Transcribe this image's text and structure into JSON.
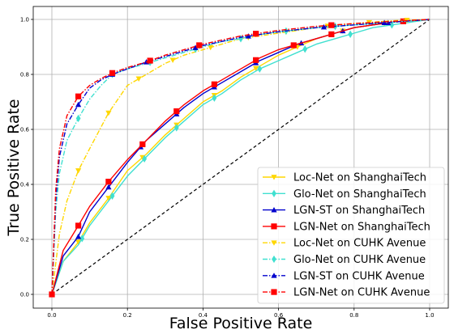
{
  "chart_data": {
    "type": "line",
    "xlabel": "False Positive Rate",
    "ylabel": "True Positive Rate",
    "xlim": [
      -0.05,
      1.05
    ],
    "ylim": [
      -0.02,
      1.02
    ],
    "xticks": [
      "0.0",
      "0.2",
      "0.4",
      "0.6",
      "0.8",
      "1.0"
    ],
    "yticks": [
      "0.0",
      "0.2",
      "0.4",
      "0.6",
      "0.8",
      "1.0"
    ],
    "grid": true,
    "legend_position": "lower-right",
    "diagonal": {
      "x": [
        0,
        1
      ],
      "y": [
        0,
        1
      ],
      "style": "dashed",
      "color": "#000000"
    },
    "series": [
      {
        "name": "Loc-Net on ShanghaiTech",
        "color": "#FFD700",
        "marker": "triangle-down",
        "dash": "solid",
        "x": [
          0,
          0.03,
          0.07,
          0.1,
          0.15,
          0.2,
          0.25,
          0.3,
          0.35,
          0.4,
          0.45,
          0.5,
          0.55,
          0.6,
          0.65,
          0.7,
          0.75,
          0.8,
          0.85,
          0.9,
          0.95,
          1.0
        ],
        "y": [
          0,
          0.12,
          0.19,
          0.26,
          0.35,
          0.45,
          0.51,
          0.58,
          0.64,
          0.7,
          0.74,
          0.79,
          0.83,
          0.87,
          0.9,
          0.93,
          0.95,
          0.97,
          0.98,
          0.99,
          0.995,
          1.0
        ],
        "marker_x": [
          0.07,
          0.15,
          0.24,
          0.33,
          0.43,
          0.54,
          0.65,
          0.77,
          0.88
        ]
      },
      {
        "name": "Glo-Net on ShanghaiTech",
        "color": "#40E0D0",
        "marker": "diamond",
        "dash": "solid",
        "x": [
          0,
          0.03,
          0.07,
          0.1,
          0.15,
          0.2,
          0.25,
          0.3,
          0.35,
          0.4,
          0.45,
          0.5,
          0.55,
          0.6,
          0.65,
          0.7,
          0.75,
          0.8,
          0.85,
          0.9,
          0.95,
          1.0
        ],
        "y": [
          0,
          0.12,
          0.18,
          0.25,
          0.34,
          0.43,
          0.5,
          0.57,
          0.63,
          0.69,
          0.73,
          0.78,
          0.82,
          0.85,
          0.88,
          0.91,
          0.93,
          0.95,
          0.97,
          0.98,
          0.99,
          1.0
        ],
        "marker_x": [
          0.08,
          0.16,
          0.245,
          0.33,
          0.43,
          0.55,
          0.67,
          0.79,
          0.9
        ]
      },
      {
        "name": "LGN-ST on ShanghaiTech",
        "color": "#0000CD",
        "marker": "triangle-up",
        "dash": "solid",
        "x": [
          0,
          0.03,
          0.07,
          0.1,
          0.15,
          0.2,
          0.25,
          0.3,
          0.35,
          0.4,
          0.45,
          0.5,
          0.55,
          0.6,
          0.65,
          0.7,
          0.75,
          0.8,
          0.85,
          0.9,
          0.95,
          1.0
        ],
        "y": [
          0,
          0.14,
          0.21,
          0.3,
          0.39,
          0.48,
          0.56,
          0.62,
          0.68,
          0.73,
          0.77,
          0.81,
          0.85,
          0.88,
          0.91,
          0.93,
          0.95,
          0.97,
          0.98,
          0.99,
          0.995,
          1.0
        ],
        "marker_x": [
          0.07,
          0.15,
          0.235,
          0.33,
          0.43,
          0.54,
          0.66,
          0.77,
          0.89
        ]
      },
      {
        "name": "LGN-Net on ShanghaiTech",
        "color": "#FF0000",
        "marker": "square",
        "dash": "solid",
        "x": [
          0,
          0.03,
          0.07,
          0.1,
          0.15,
          0.2,
          0.25,
          0.3,
          0.35,
          0.4,
          0.45,
          0.5,
          0.55,
          0.6,
          0.65,
          0.7,
          0.75,
          0.8,
          0.85,
          0.9,
          0.95,
          1.0
        ],
        "y": [
          0,
          0.16,
          0.25,
          0.32,
          0.41,
          0.49,
          0.56,
          0.63,
          0.69,
          0.74,
          0.78,
          0.82,
          0.86,
          0.89,
          0.91,
          0.93,
          0.95,
          0.97,
          0.98,
          0.99,
          0.995,
          1.0
        ],
        "marker_x": [
          0.07,
          0.15,
          0.24,
          0.33,
          0.43,
          0.54,
          0.64,
          0.74,
          0.93
        ]
      },
      {
        "name": "Loc-Net on CUHK Avenue",
        "color": "#FFD700",
        "marker": "triangle-down",
        "dash": "dashdot",
        "x": [
          0,
          0.02,
          0.04,
          0.07,
          0.1,
          0.15,
          0.2,
          0.25,
          0.3,
          0.35,
          0.4,
          0.45,
          0.5,
          0.55,
          0.6,
          0.65,
          0.7,
          0.75,
          0.8,
          0.85,
          0.9,
          0.95,
          1.0
        ],
        "y": [
          0,
          0.22,
          0.34,
          0.45,
          0.53,
          0.66,
          0.76,
          0.8,
          0.84,
          0.87,
          0.89,
          0.91,
          0.93,
          0.94,
          0.95,
          0.96,
          0.97,
          0.98,
          0.985,
          0.99,
          0.995,
          0.998,
          1.0
        ],
        "marker_x": [
          0.07,
          0.15,
          0.23,
          0.32,
          0.42,
          0.52,
          0.62,
          0.73,
          0.84,
          0.94
        ]
      },
      {
        "name": "Glo-Net on CUHK Avenue",
        "color": "#40E0D0",
        "marker": "diamond",
        "dash": "dashdot",
        "x": [
          0,
          0.01,
          0.02,
          0.04,
          0.07,
          0.1,
          0.13,
          0.16,
          0.2,
          0.25,
          0.3,
          0.35,
          0.4,
          0.45,
          0.5,
          0.55,
          0.6,
          0.7,
          0.8,
          0.9,
          1.0
        ],
        "y": [
          0,
          0.3,
          0.44,
          0.56,
          0.64,
          0.71,
          0.76,
          0.8,
          0.82,
          0.84,
          0.86,
          0.88,
          0.9,
          0.92,
          0.93,
          0.945,
          0.955,
          0.97,
          0.98,
          0.99,
          1.0
        ],
        "marker_x": [
          0.07,
          0.16,
          0.26,
          0.38,
          0.5,
          0.62,
          0.75
        ]
      },
      {
        "name": "LGN-ST on CUHK Avenue",
        "color": "#0000CD",
        "marker": "triangle-up",
        "dash": "dashdot",
        "x": [
          0,
          0.01,
          0.02,
          0.04,
          0.07,
          0.1,
          0.13,
          0.16,
          0.2,
          0.25,
          0.3,
          0.35,
          0.4,
          0.45,
          0.5,
          0.55,
          0.6,
          0.7,
          0.8,
          0.9,
          1.0
        ],
        "y": [
          0,
          0.34,
          0.5,
          0.62,
          0.69,
          0.75,
          0.78,
          0.8,
          0.82,
          0.845,
          0.865,
          0.885,
          0.905,
          0.92,
          0.935,
          0.945,
          0.955,
          0.97,
          0.98,
          0.99,
          1.0
        ],
        "marker_x": [
          0.07,
          0.16,
          0.25,
          0.38,
          0.52,
          0.72,
          0.88
        ]
      },
      {
        "name": "LGN-Net on CUHK Avenue",
        "color": "#FF0000",
        "marker": "square",
        "dash": "dashdot",
        "x": [
          0,
          0.01,
          0.02,
          0.04,
          0.07,
          0.1,
          0.13,
          0.16,
          0.2,
          0.25,
          0.3,
          0.35,
          0.4,
          0.45,
          0.5,
          0.55,
          0.6,
          0.7,
          0.8,
          0.9,
          1.0
        ],
        "y": [
          0,
          0.38,
          0.53,
          0.65,
          0.72,
          0.76,
          0.785,
          0.805,
          0.825,
          0.845,
          0.87,
          0.89,
          0.91,
          0.925,
          0.94,
          0.95,
          0.96,
          0.975,
          0.985,
          0.993,
          1.0
        ],
        "marker_x": [
          0,
          0.07,
          0.16,
          0.26,
          0.39,
          0.54,
          0.74
        ]
      }
    ]
  }
}
